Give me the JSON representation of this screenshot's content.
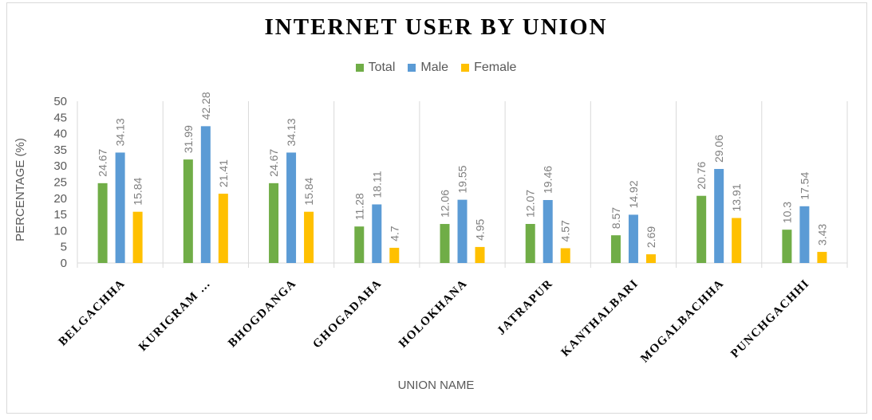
{
  "chart_data": {
    "type": "bar",
    "title": "INTERNET USER BY UNION",
    "xlabel": "UNION NAME",
    "ylabel": "PERCENTAGE (%)",
    "ylim": [
      0,
      50
    ],
    "yticks": [
      0,
      5,
      10,
      15,
      20,
      25,
      30,
      35,
      40,
      45,
      50
    ],
    "grid": false,
    "legend_position": "top",
    "categories": [
      "BELGACHHA",
      "KURIGRAM …",
      "BHOGDANGA",
      "GHOGADAHA",
      "HOLOKHANA",
      "JATRAPUR",
      "KANTHALBARI",
      "MOGALBACHHA",
      "PUNCHGACHHI"
    ],
    "series": [
      {
        "name": "Total",
        "color": "#70ad47",
        "values": [
          24.67,
          31.99,
          24.67,
          11.28,
          12.06,
          12.07,
          8.57,
          20.76,
          10.3
        ],
        "labels": [
          "24.67",
          "31.99",
          "24.67",
          "11.28",
          "12.06",
          "12.07",
          "8.57",
          "20.76",
          "10.3"
        ]
      },
      {
        "name": "Male",
        "color": "#5b9bd5",
        "values": [
          34.13,
          42.28,
          34.13,
          18.11,
          19.55,
          19.46,
          14.92,
          29.06,
          17.54
        ],
        "labels": [
          "34.13",
          "42.28",
          "34.13",
          "18.11",
          "19.55",
          "19.46",
          "14.92",
          "29.06",
          "17.54"
        ]
      },
      {
        "name": "Female",
        "color": "#ffc000",
        "values": [
          15.84,
          21.41,
          15.84,
          4.7,
          4.95,
          4.57,
          2.69,
          13.91,
          3.43
        ],
        "labels": [
          "15.84",
          "21.41",
          "15.84",
          "4.7",
          "4.95",
          "4.57",
          "2.69",
          "13.91",
          "3.43"
        ]
      }
    ]
  }
}
